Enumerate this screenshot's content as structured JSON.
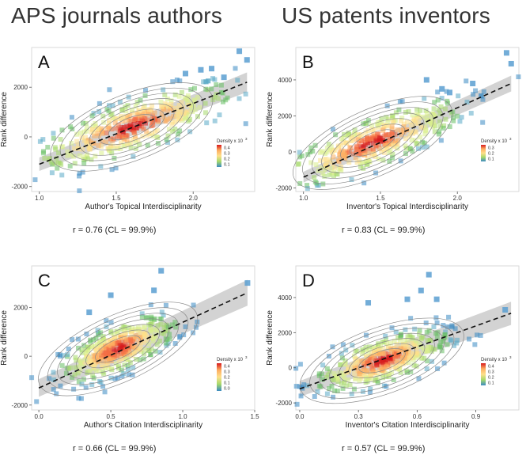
{
  "columns": {
    "left": "APS journals authors",
    "right": "US patents inventors"
  },
  "density_legend_title": "Density x 10",
  "density_legend_exp": "3",
  "regression_stats": {
    "A": "r = 0.76 (CL = 99.9%)",
    "B": "r = 0.83 (CL = 99.9%)",
    "C": "r = 0.66 (CL = 99.9%)",
    "D": "r = 0.57 (CL = 99.9%)"
  },
  "chart_data": [
    {
      "panel": "A",
      "type": "scatter",
      "title": "A",
      "xlabel": "Author's Topical Interdisciplinarity",
      "ylabel": "Rank difference",
      "xlim": [
        0.95,
        2.4
      ],
      "ylim": [
        -2200,
        3600
      ],
      "xticks": [
        1.0,
        1.5,
        2.0
      ],
      "xtick_labels": [
        "1.0",
        "1.5",
        "2.0"
      ],
      "yticks": [
        -2000,
        0,
        2000
      ],
      "ytick_labels": [
        "-2000",
        "0",
        "2000"
      ],
      "fit_line": {
        "x": [
          1.0,
          2.35
        ],
        "y": [
          -1100,
          2200
        ]
      },
      "ci_half_width": 180,
      "density_cloud": {
        "center": [
          1.6,
          400
        ],
        "spread": [
          0.33,
          1000
        ],
        "points": 420
      },
      "outliers": [
        [
          2.3,
          3450
        ],
        [
          2.35,
          3100
        ],
        [
          2.12,
          2750
        ],
        [
          2.05,
          2700
        ],
        [
          2.2,
          2400
        ],
        [
          1.95,
          2550
        ]
      ],
      "density_legend_ticks": [
        "0.4",
        "0.3",
        "0.2",
        "0.1"
      ]
    },
    {
      "panel": "B",
      "type": "scatter",
      "title": "B",
      "xlabel": "Inventor's Topical Interdisciplinarity",
      "ylabel": "Rank difference",
      "xlim": [
        0.95,
        2.4
      ],
      "ylim": [
        -2200,
        5800
      ],
      "xticks": [
        1.0,
        1.5,
        2.0
      ],
      "xtick_labels": [
        "1.0",
        "1.5",
        "2.0"
      ],
      "yticks": [
        -2000,
        0,
        2000,
        4000
      ],
      "ytick_labels": [
        "-2000",
        "0",
        "2000",
        "4000"
      ],
      "fit_line": {
        "x": [
          1.0,
          2.35
        ],
        "y": [
          -1400,
          3800
        ]
      },
      "ci_half_width": 200,
      "density_cloud": {
        "center": [
          1.45,
          500
        ],
        "spread": [
          0.3,
          1300
        ],
        "points": 420
      },
      "outliers": [
        [
          2.32,
          5500
        ],
        [
          2.35,
          4900
        ],
        [
          1.8,
          4000
        ],
        [
          1.9,
          3500
        ],
        [
          2.1,
          3800
        ],
        [
          1.95,
          3300
        ]
      ],
      "density_legend_ticks": [
        "0.3",
        "0.2",
        "0.1"
      ]
    },
    {
      "panel": "C",
      "type": "scatter",
      "title": "C",
      "xlabel": "Author's Citation Interdisciplinarity",
      "ylabel": "Rank difference",
      "xlim": [
        -0.05,
        1.5
      ],
      "ylim": [
        -2200,
        3700
      ],
      "xticks": [
        0.0,
        0.5,
        1.0,
        1.5
      ],
      "xtick_labels": [
        "0.0",
        "0.5",
        "1.0",
        "1.5"
      ],
      "yticks": [
        -2000,
        0,
        2000
      ],
      "ytick_labels": [
        "-2000",
        "0",
        "2000"
      ],
      "fit_line": {
        "x": [
          0.0,
          1.45
        ],
        "y": [
          -1300,
          2600
        ]
      },
      "ci_half_width": 240,
      "density_cloud": {
        "center": [
          0.55,
          300
        ],
        "spread": [
          0.2,
          900
        ],
        "points": 420
      },
      "outliers": [
        [
          0.85,
          3500
        ],
        [
          1.45,
          3000
        ],
        [
          0.8,
          2700
        ],
        [
          0.5,
          2500
        ],
        [
          0.35,
          1800
        ]
      ],
      "density_legend_ticks": [
        "0.4",
        "0.3",
        "0.2",
        "0.1",
        "0.0"
      ]
    },
    {
      "panel": "D",
      "type": "scatter",
      "title": "D",
      "xlabel": "Inventor's Citation Interdisciplinarity",
      "ylabel": "Rank difference",
      "xlim": [
        -0.02,
        1.12
      ],
      "ylim": [
        -2400,
        5800
      ],
      "xticks": [
        0.0,
        0.3,
        0.6,
        0.9
      ],
      "xtick_labels": [
        "0.0",
        "0.3",
        "0.6",
        "0.9"
      ],
      "yticks": [
        -2000,
        0,
        2000,
        4000
      ],
      "ytick_labels": [
        "-2000",
        "0",
        "2000",
        "4000"
      ],
      "fit_line": {
        "x": [
          0.0,
          1.08
        ],
        "y": [
          -1200,
          3100
        ]
      },
      "ci_half_width": 300,
      "density_cloud": {
        "center": [
          0.42,
          400
        ],
        "spread": [
          0.17,
          1200
        ],
        "points": 420
      },
      "outliers": [
        [
          0.66,
          5300
        ],
        [
          0.62,
          4400
        ],
        [
          0.55,
          3900
        ],
        [
          0.7,
          3900
        ],
        [
          1.05,
          3300
        ],
        [
          0.35,
          3700
        ]
      ],
      "density_legend_ticks": [
        "0.4",
        "0.3",
        "0.2",
        "0.1"
      ]
    }
  ]
}
